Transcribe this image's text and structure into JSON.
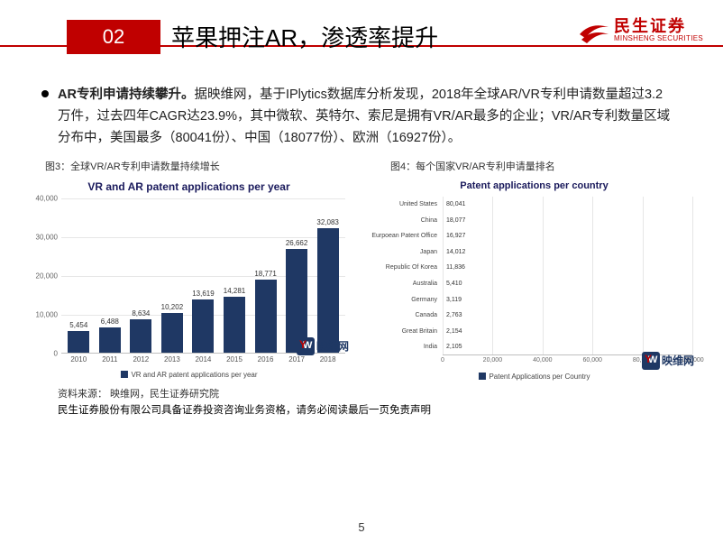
{
  "header": {
    "section_num": "02",
    "title": "苹果押注AR，渗透率提升",
    "logo_cn": "民生证券",
    "logo_en": "MINSHENG SECURITIES",
    "accent_color": "#c00000"
  },
  "body": {
    "bold": "AR专利申请持续攀升。",
    "rest": "据映维网，基于IPlytics数据库分析发现，2018年全球AR/VR专利申请数量超过3.2万件，过去四年CAGR达23.9%，其中微软、英特尔、索尼是拥有VR/AR最多的企业；VR/AR专利数量区域分布中，美国最多（80041份）、中国（18077份）、欧洲（16927份）。"
  },
  "chart3": {
    "caption": "图3：全球VR/AR专利申请数量持续增长",
    "title": "VR and AR patent applications per year",
    "legend": "VR and AR patent applications per year",
    "type": "bar",
    "categories": [
      "2010",
      "2011",
      "2012",
      "2013",
      "2014",
      "2015",
      "2016",
      "2017",
      "2018"
    ],
    "values": [
      5454,
      6488,
      8634,
      10202,
      13619,
      14281,
      18771,
      26662,
      32083
    ],
    "value_labels": [
      "5,454",
      "6,488",
      "8,634",
      "10,202",
      "13,619",
      "14,281",
      "18,771",
      "26,662",
      "32,083"
    ],
    "ylim": [
      0,
      40000
    ],
    "ytick_step": 10000,
    "ytick_labels": [
      "0",
      "10,000",
      "20,000",
      "30,000",
      "40,000"
    ],
    "bar_color": "#1f3864",
    "grid_color": "#e6e6e6",
    "background_color": "#ffffff"
  },
  "chart4": {
    "caption": "图4：每个国家VR/AR专利申请量排名",
    "title": "Patent applications per country",
    "legend": "Patent Applications per Country",
    "type": "hbar",
    "labels": [
      "United States",
      "China",
      "Eurpoean Patent Office",
      "Japan",
      "Republic Of Korea",
      "Australia",
      "Germany",
      "Canada",
      "Great Britain",
      "India"
    ],
    "values": [
      80041,
      18077,
      16927,
      14012,
      11836,
      5410,
      3119,
      2763,
      2154,
      2105
    ],
    "value_labels": [
      "80,041",
      "18,077",
      "16,927",
      "14,012",
      "11,836",
      "5,410",
      "3,119",
      "2,763",
      "2,154",
      "2,105"
    ],
    "xlim": [
      0,
      100000
    ],
    "xtick_step": 20000,
    "xtick_labels": [
      "0",
      "20,000",
      "40,000",
      "60,000",
      "80,000",
      "100,000"
    ],
    "bar_color": "#1f3864",
    "grid_color": "#e6e6e6",
    "background_color": "#ffffff"
  },
  "watermark": {
    "text": "映维网"
  },
  "source": "资料来源：  映维网，民生证券研究院",
  "disclaimer": "民生证券股份有限公司具备证券投资咨询业务资格，请务必阅读最后一页免责声明",
  "page_num": "5"
}
